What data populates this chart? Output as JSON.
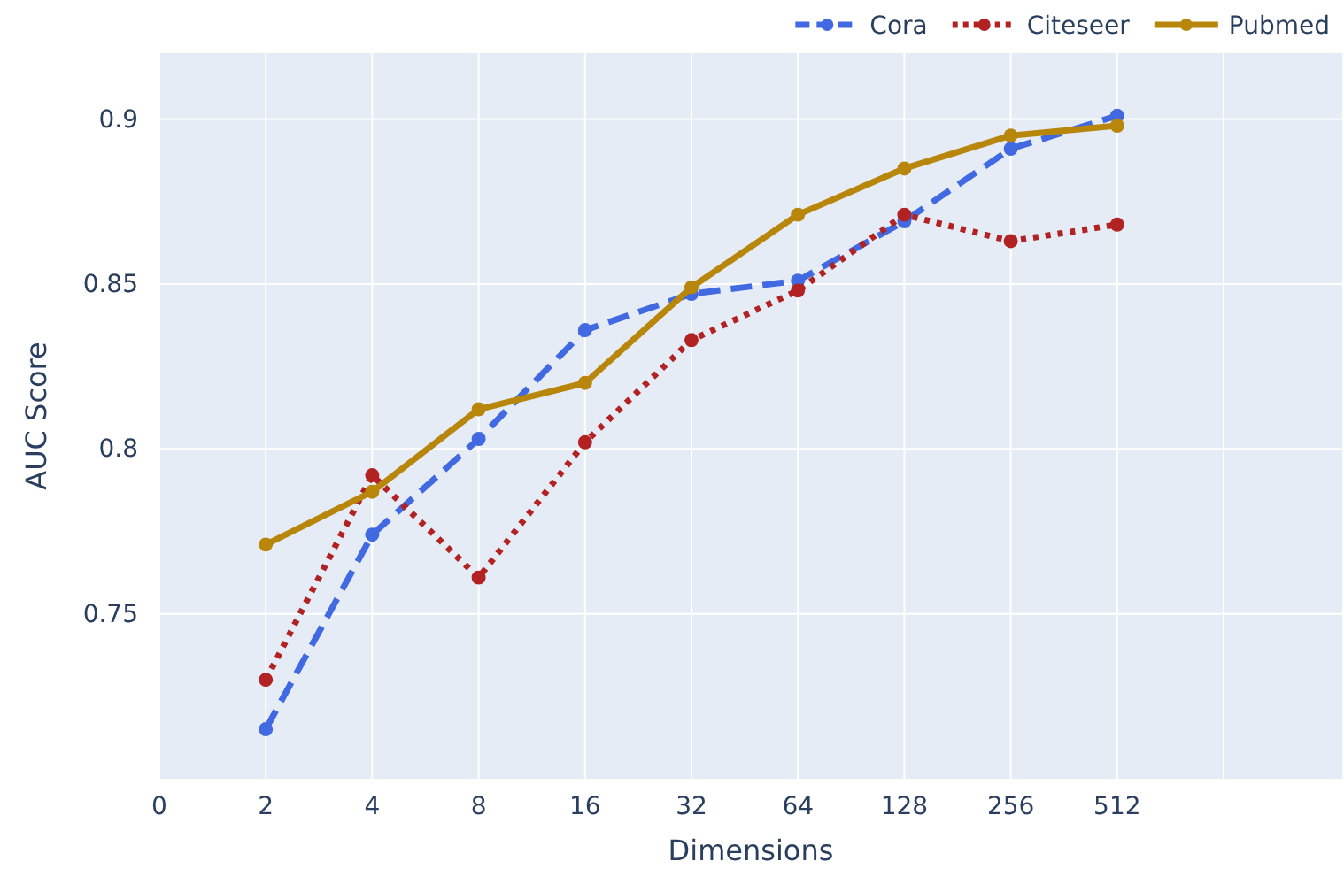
{
  "chart_data": {
    "type": "line",
    "xlabel": "Dimensions",
    "ylabel": "AUC Score",
    "categories": [
      "0",
      "2",
      "4",
      "8",
      "16",
      "32",
      "64",
      "128",
      "256",
      "512",
      null
    ],
    "series": [
      {
        "name": "Cora",
        "color": "#4169e1",
        "line_style": "dashed",
        "values": [
          null,
          0.715,
          0.774,
          0.803,
          0.836,
          0.847,
          0.851,
          0.869,
          0.891,
          0.901,
          null
        ]
      },
      {
        "name": "Citeseer",
        "color": "#b22222",
        "line_style": "dotted",
        "values": [
          null,
          0.73,
          0.792,
          0.761,
          0.802,
          0.833,
          0.848,
          0.871,
          0.863,
          0.868,
          null
        ]
      },
      {
        "name": "Pubmed",
        "color": "#b8860b",
        "line_style": "solid",
        "values": [
          null,
          0.771,
          0.787,
          0.812,
          0.82,
          0.849,
          0.871,
          0.885,
          0.895,
          0.898,
          null
        ]
      }
    ],
    "ylim": [
      0.7,
      0.92
    ],
    "yticks": [
      0.75,
      0.8,
      0.85,
      0.9
    ],
    "grid": true,
    "legend": "top right",
    "marker": "circle"
  }
}
